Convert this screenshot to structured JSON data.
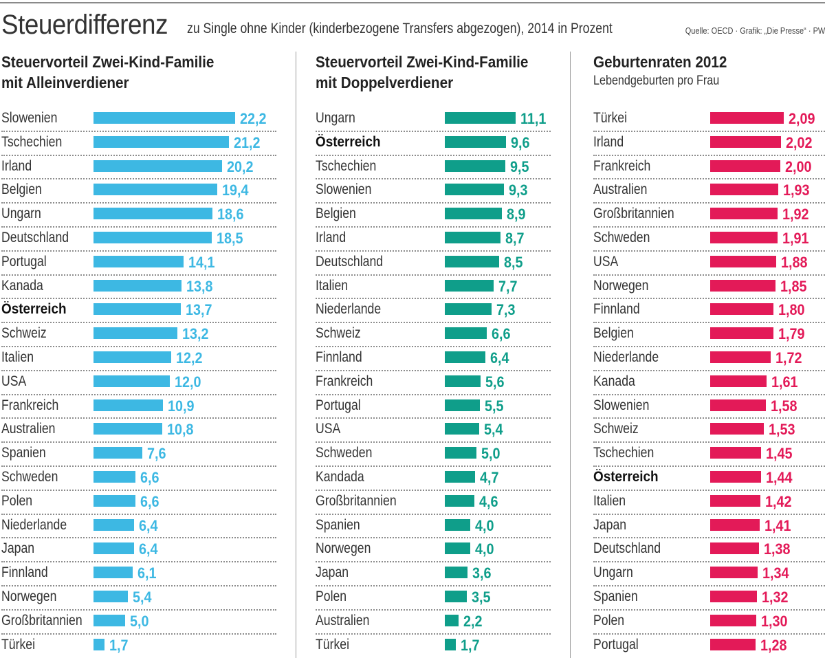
{
  "header": {
    "title": "Steuerdifferenz",
    "subtitle": "zu Single ohne Kinder (kinderbezogene Transfers abgezogen), 2014 in Prozent",
    "source": "Quelle: OECD · Grafik: „Die Presse“ · PW"
  },
  "colors": {
    "panel1": "#3db8e3",
    "panel2": "#0f9e8a",
    "panel3": "#e31a58"
  },
  "chart_data": [
    {
      "type": "bar",
      "orientation": "horizontal",
      "title": "Steuervorteil Zwei-Kind-Familie mit Alleinverdiener",
      "title_lines": [
        "Steuervorteil Zwei-Kind-Familie",
        "mit Alleinverdiener"
      ],
      "unit": "Prozent",
      "highlight": "Österreich",
      "categories": [
        "Slowenien",
        "Tschechien",
        "Irland",
        "Belgien",
        "Ungarn",
        "Deutschland",
        "Portugal",
        "Kanada",
        "Österreich",
        "Schweiz",
        "Italien",
        "USA",
        "Frankreich",
        "Australien",
        "Spanien",
        "Schweden",
        "Polen",
        "Niederlande",
        "Japan",
        "Finnland",
        "Norwegen",
        "Großbritannien",
        "Türkei"
      ],
      "values": [
        22.2,
        21.2,
        20.2,
        19.4,
        18.6,
        18.5,
        14.1,
        13.8,
        13.7,
        13.2,
        12.2,
        12.0,
        10.9,
        10.8,
        7.6,
        6.6,
        6.6,
        6.4,
        6.4,
        6.1,
        5.4,
        5.0,
        1.7
      ],
      "labels": [
        "22,2",
        "21,2",
        "20,2",
        "19,4",
        "18,6",
        "18,5",
        "14,1",
        "13,8",
        "13,7",
        "13,2",
        "12,2",
        "12,0",
        "10,9",
        "10,8",
        "7,6",
        "6,6",
        "6,6",
        "6,4",
        "6,4",
        "6,1",
        "5,4",
        "5,0",
        "1,7"
      ],
      "xlim": [
        0,
        22.2
      ]
    },
    {
      "type": "bar",
      "orientation": "horizontal",
      "title": "Steuervorteil Zwei-Kind-Familie mit Doppelverdiener",
      "title_lines": [
        "Steuervorteil Zwei-Kind-Familie",
        "mit Doppelverdiener"
      ],
      "unit": "Prozent",
      "highlight": "Österreich",
      "categories": [
        "Ungarn",
        "Österreich",
        "Tschechien",
        "Slowenien",
        "Belgien",
        "Irland",
        "Deutschland",
        "Italien",
        "Niederlande",
        "Schweiz",
        "Finnland",
        "Frankreich",
        "Portugal",
        "USA",
        "Schweden",
        "Kandada",
        "Großbritannien",
        "Spanien",
        "Norwegen",
        "Japan",
        "Polen",
        "Australien",
        "Türkei"
      ],
      "values": [
        11.1,
        9.6,
        9.5,
        9.3,
        8.9,
        8.7,
        8.5,
        7.7,
        7.3,
        6.6,
        6.4,
        5.6,
        5.5,
        5.4,
        5.0,
        4.7,
        4.6,
        4.0,
        4.0,
        3.6,
        3.5,
        2.2,
        1.7
      ],
      "labels": [
        "11,1",
        "9,6",
        "9,5",
        "9,3",
        "8,9",
        "8,7",
        "8,5",
        "7,7",
        "7,3",
        "6,6",
        "6,4",
        "5,6",
        "5,5",
        "5,4",
        "5,0",
        "4,7",
        "4,6",
        "4,0",
        "4,0",
        "3,6",
        "3,5",
        "2,2",
        "1,7"
      ],
      "xlim": [
        0,
        11.1
      ]
    },
    {
      "type": "bar",
      "orientation": "horizontal",
      "title": "Geburtenraten 2012",
      "title_lines": [
        "Geburtenraten 2012"
      ],
      "subtitle": "Lebendgeburten pro Frau",
      "highlight": "Österreich",
      "categories": [
        "Türkei",
        "Irland",
        "Frankreich",
        "Australien",
        "Großbritannien",
        "Schweden",
        "USA",
        "Norwegen",
        "Finnland",
        "Belgien",
        "Niederlande",
        "Kanada",
        "Slowenien",
        "Schweiz",
        "Tschechien",
        "Österreich",
        "Italien",
        "Japan",
        "Deutschland",
        "Ungarn",
        "Spanien",
        "Polen",
        "Portugal"
      ],
      "values": [
        2.09,
        2.02,
        2.0,
        1.93,
        1.92,
        1.91,
        1.88,
        1.85,
        1.8,
        1.79,
        1.72,
        1.61,
        1.58,
        1.53,
        1.45,
        1.44,
        1.42,
        1.41,
        1.38,
        1.34,
        1.32,
        1.3,
        1.28
      ],
      "labels": [
        "2,09",
        "2,02",
        "2,00",
        "1,93",
        "1,92",
        "1,91",
        "1,88",
        "1,85",
        "1,80",
        "1,79",
        "1,72",
        "1,61",
        "1,58",
        "1,53",
        "1,45",
        "1,44",
        "1,42",
        "1,41",
        "1,38",
        "1,34",
        "1,32",
        "1,30",
        "1,28"
      ],
      "xlim": [
        0,
        2.09
      ]
    }
  ]
}
